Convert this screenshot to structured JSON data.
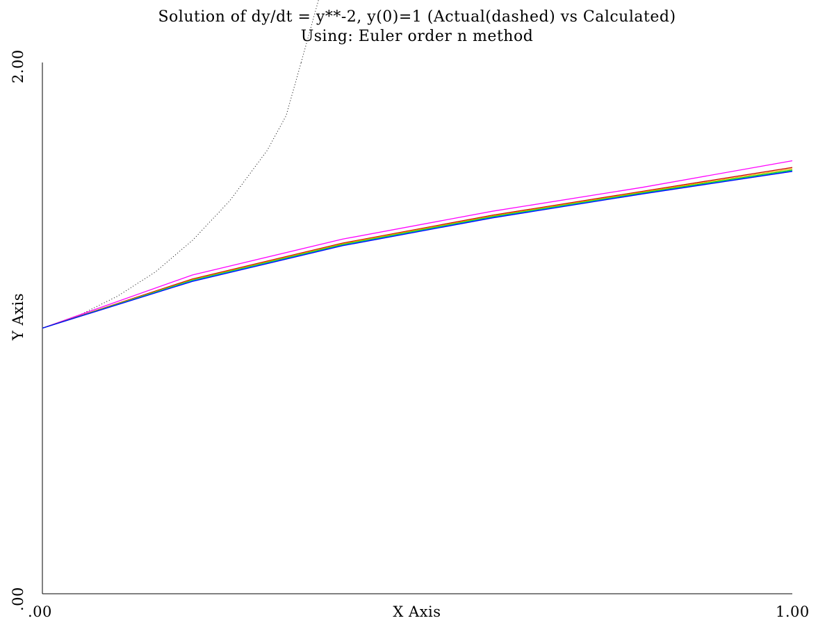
{
  "chart_data": {
    "type": "line",
    "title": "Solution of dy/dt = y**-2, y(0)=1 (Actual(dashed) vs Calculated)",
    "subtitle": "Using: Euler order n method",
    "xlabel": "X Axis",
    "ylabel": "Y Axis",
    "xlim": [
      0,
      1
    ],
    "ylim": [
      0,
      2
    ],
    "x_tick_labels": [
      ".00",
      "1.00"
    ],
    "y_tick_labels": [
      ".00",
      "2.00"
    ],
    "grid": false,
    "legend": "none",
    "actual": {
      "style": "dotted",
      "color": "#000000",
      "x": [
        0,
        0.05,
        0.1,
        0.15,
        0.2,
        0.25,
        0.3,
        0.325,
        0.345
      ],
      "y": [
        1.0,
        1.05,
        1.12,
        1.21,
        1.33,
        1.48,
        1.67,
        1.8,
        2.0
      ]
    },
    "series": [
      {
        "color": "#ff00ff",
        "x": [
          0,
          0.2,
          0.4,
          0.6,
          0.8,
          1.0
        ],
        "y": [
          1.0,
          1.2,
          1.335,
          1.44,
          1.53,
          1.63
        ]
      },
      {
        "color": "#cc0000",
        "x": [
          0,
          0.2,
          0.4,
          0.6,
          0.8,
          1.0
        ],
        "y": [
          1.0,
          1.185,
          1.32,
          1.425,
          1.515,
          1.605
        ]
      },
      {
        "color": "#e6b800",
        "x": [
          0,
          0.2,
          0.4,
          0.6,
          0.8,
          1.0
        ],
        "y": [
          1.0,
          1.182,
          1.317,
          1.422,
          1.512,
          1.6
        ]
      },
      {
        "color": "#00cc00",
        "x": [
          0,
          0.2,
          0.4,
          0.6,
          0.8,
          1.0
        ],
        "y": [
          1.0,
          1.18,
          1.314,
          1.419,
          1.509,
          1.595
        ]
      },
      {
        "color": "#00cccc",
        "x": [
          0,
          0.2,
          0.4,
          0.6,
          0.8,
          1.0
        ],
        "y": [
          1.0,
          1.178,
          1.312,
          1.417,
          1.507,
          1.592
        ]
      },
      {
        "color": "#0000ff",
        "x": [
          0,
          0.2,
          0.4,
          0.6,
          0.8,
          1.0
        ],
        "y": [
          1.0,
          1.176,
          1.31,
          1.415,
          1.505,
          1.59
        ]
      }
    ]
  }
}
